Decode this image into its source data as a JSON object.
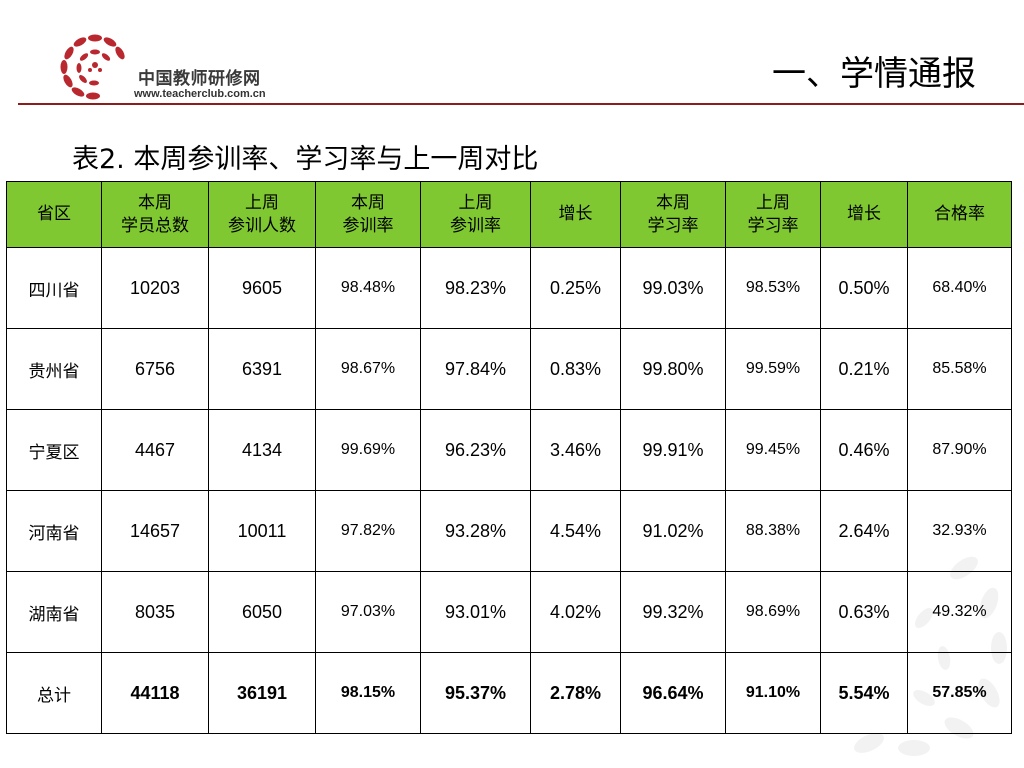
{
  "logo": {
    "name": "中国教师研修网",
    "url": "www.teacherclub.com.cn"
  },
  "slide_title": "一、学情通报",
  "table_caption": "表2. 本周参训率、学习率与上一周对比",
  "colors": {
    "header_bg": "#7fc832",
    "rule": "#8c1d1d",
    "logo_red": "#b8282e"
  },
  "table": {
    "headers": [
      {
        "line1": "省区",
        "line2": ""
      },
      {
        "line1": "本周",
        "line2": "学员总数"
      },
      {
        "line1": "上周",
        "line2": "参训人数"
      },
      {
        "line1": "本周",
        "line2": "参训率"
      },
      {
        "line1": "上周",
        "line2": "参训率"
      },
      {
        "line1": "增长",
        "line2": ""
      },
      {
        "line1": "本周",
        "line2": "学习率"
      },
      {
        "line1": "上周",
        "line2": "学习率"
      },
      {
        "line1": "增长",
        "line2": ""
      },
      {
        "line1": "合格率",
        "line2": ""
      }
    ],
    "rows": [
      [
        "四川省",
        "10203",
        "9605",
        "98.48%",
        "98.23%",
        "0.25%",
        "99.03%",
        "98.53%",
        "0.50%",
        "68.40%"
      ],
      [
        "贵州省",
        "6756",
        "6391",
        "98.67%",
        "97.84%",
        "0.83%",
        "99.80%",
        "99.59%",
        "0.21%",
        "85.58%"
      ],
      [
        "宁夏区",
        "4467",
        "4134",
        "99.69%",
        "96.23%",
        "3.46%",
        "99.91%",
        "99.45%",
        "0.46%",
        "87.90%"
      ],
      [
        "河南省",
        "14657",
        "10011",
        "97.82%",
        "93.28%",
        "4.54%",
        "91.02%",
        "88.38%",
        "2.64%",
        "32.93%"
      ],
      [
        "湖南省",
        "8035",
        "6050",
        "97.03%",
        "93.01%",
        "4.02%",
        "99.32%",
        "98.69%",
        "0.63%",
        "49.32%"
      ]
    ],
    "total": [
      "总计",
      "44118",
      "36191",
      "98.15%",
      "95.37%",
      "2.78%",
      "96.64%",
      "91.10%",
      "5.54%",
      "57.85%"
    ]
  }
}
